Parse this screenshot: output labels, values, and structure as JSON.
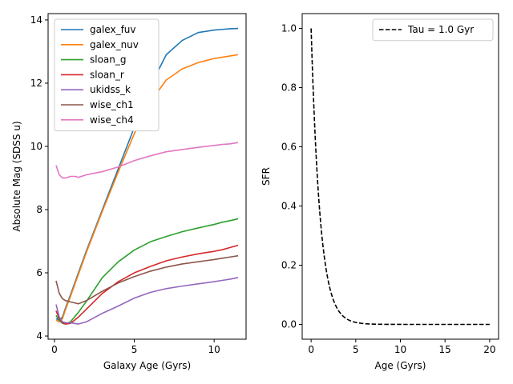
{
  "chart_data": [
    {
      "type": "line",
      "xlabel": "Galaxy Age (Gyrs)",
      "ylabel": "Absolute Mag (SDSS u)",
      "xlim": [
        -0.4,
        12.0
      ],
      "ylim": [
        3.9,
        14.2
      ],
      "xticks": [
        0,
        5,
        10
      ],
      "yticks": [
        4,
        6,
        8,
        10,
        12,
        14
      ],
      "legend": "top-left",
      "series": [
        {
          "name": "galex_fuv",
          "color": "#1f77b4",
          "x": [
            0.1,
            0.3,
            0.5,
            0.7,
            1.0,
            1.5,
            2,
            3,
            4,
            5,
            6,
            7,
            8,
            9,
            10,
            10.5,
            11,
            11.5
          ],
          "y": [
            4.55,
            4.5,
            4.6,
            4.9,
            5.3,
            6.0,
            6.7,
            8.0,
            9.3,
            10.6,
            11.9,
            12.9,
            13.35,
            13.6,
            13.68,
            13.7,
            13.72,
            13.73
          ]
        },
        {
          "name": "galex_nuv",
          "color": "#ff7f0e",
          "x": [
            0.1,
            0.3,
            0.5,
            0.7,
            1.0,
            1.5,
            2,
            3,
            4,
            5,
            6,
            7,
            8,
            9,
            10,
            10.5,
            11,
            11.5
          ],
          "y": [
            4.5,
            4.45,
            4.55,
            4.85,
            5.25,
            5.95,
            6.65,
            7.95,
            9.2,
            10.4,
            11.4,
            12.1,
            12.45,
            12.65,
            12.78,
            12.82,
            12.86,
            12.9
          ]
        },
        {
          "name": "sloan_g",
          "color": "#2ca02c",
          "x": [
            0.1,
            0.3,
            0.5,
            0.7,
            1.0,
            1.5,
            2,
            3,
            4,
            5,
            6,
            7,
            8,
            9,
            10,
            10.5,
            11,
            11.5
          ],
          "y": [
            4.65,
            4.5,
            4.4,
            4.38,
            4.45,
            4.75,
            5.1,
            5.85,
            6.35,
            6.72,
            6.98,
            7.15,
            7.3,
            7.42,
            7.53,
            7.6,
            7.65,
            7.71
          ]
        },
        {
          "name": "sloan_r",
          "color": "#d62728",
          "x": [
            0.1,
            0.3,
            0.5,
            0.7,
            1.0,
            1.5,
            2,
            3,
            4,
            5,
            6,
            7,
            8,
            9,
            10,
            10.5,
            11,
            11.5
          ],
          "y": [
            4.8,
            4.55,
            4.42,
            4.38,
            4.4,
            4.6,
            4.85,
            5.35,
            5.72,
            6.0,
            6.2,
            6.38,
            6.5,
            6.6,
            6.68,
            6.73,
            6.8,
            6.87
          ]
        },
        {
          "name": "ukidss_k",
          "color": "#9467bd",
          "x": [
            0.1,
            0.3,
            0.5,
            0.7,
            1.0,
            1.5,
            2,
            3,
            4,
            5,
            6,
            7,
            8,
            9,
            10,
            10.5,
            11,
            11.5
          ],
          "y": [
            5.0,
            4.6,
            4.45,
            4.42,
            4.42,
            4.38,
            4.45,
            4.72,
            4.95,
            5.2,
            5.38,
            5.5,
            5.58,
            5.65,
            5.72,
            5.76,
            5.8,
            5.85
          ]
        },
        {
          "name": "wise_ch1",
          "color": "#8c564b",
          "x": [
            0.1,
            0.3,
            0.5,
            0.7,
            1.0,
            1.5,
            2,
            3,
            4,
            5,
            6,
            7,
            8,
            9,
            10,
            10.5,
            11,
            11.5
          ],
          "y": [
            5.75,
            5.35,
            5.18,
            5.12,
            5.08,
            5.02,
            5.12,
            5.42,
            5.68,
            5.88,
            6.05,
            6.18,
            6.28,
            6.35,
            6.42,
            6.46,
            6.5,
            6.54
          ]
        },
        {
          "name": "wise_ch4",
          "color": "#e377c2",
          "x": [
            0.1,
            0.2,
            0.3,
            0.5,
            0.7,
            1.0,
            1.3,
            1.5,
            2,
            3,
            4,
            5,
            6,
            7,
            8,
            9,
            10,
            10.5,
            11,
            11.5
          ],
          "y": [
            9.4,
            9.25,
            9.1,
            9.0,
            9.0,
            9.05,
            9.05,
            9.02,
            9.1,
            9.2,
            9.35,
            9.55,
            9.7,
            9.83,
            9.9,
            9.97,
            10.03,
            10.06,
            10.08,
            10.12
          ]
        }
      ]
    },
    {
      "type": "line",
      "xlabel": "Age (Gyrs)",
      "ylabel": "SFR",
      "xlim": [
        -1.0,
        21.0
      ],
      "ylim": [
        -0.05,
        1.05
      ],
      "xticks": [
        0,
        5,
        10,
        15,
        20
      ],
      "yticks": [
        "0.0",
        "0.2",
        "0.4",
        "0.6",
        "0.8",
        "1.0"
      ],
      "legend": "top-right",
      "series": [
        {
          "name": "Tau = 1.0 Gyr",
          "color": "#000000",
          "style": "dashed",
          "tau": 1.0,
          "x_range": [
            0,
            20
          ]
        }
      ]
    }
  ]
}
